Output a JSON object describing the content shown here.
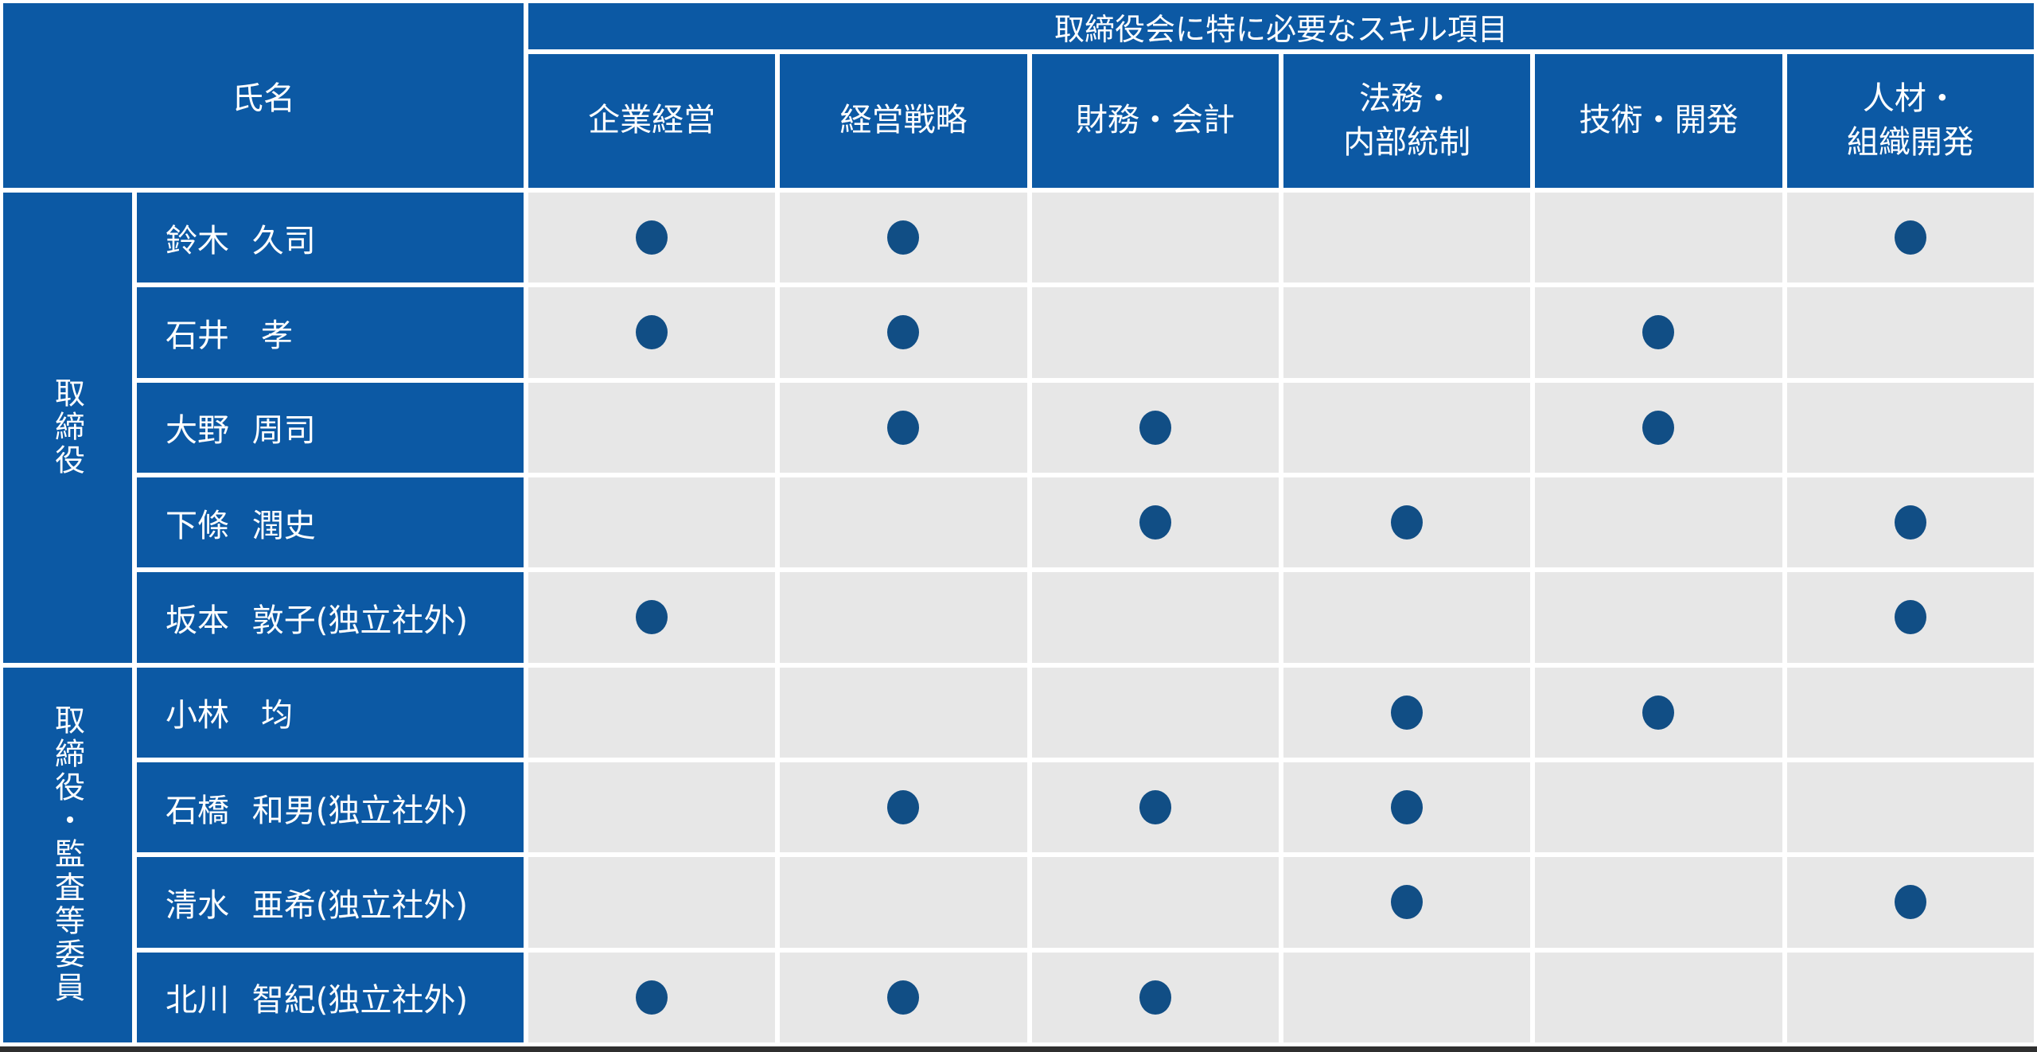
{
  "colors": {
    "header_blue": "#0c59a4",
    "cell_gray": "#e7e7e7",
    "dot_blue": "#114e85",
    "grid_white": "#ffffff",
    "bottom_edge_dark": "#2f2f2f"
  },
  "chart_data": {
    "type": "table",
    "title": "取締役会に特に必要なスキル項目",
    "row_header": "氏名",
    "columns": [
      "企業経営",
      "経営戦略",
      "財務・会計",
      "法務・内部統制",
      "技術・開発",
      "人材・組織開発"
    ],
    "column_display": [
      "企業経営",
      "経営戦略",
      "財務・会計",
      "法務・\n内部統制",
      "技術・開発",
      "人材・\n組織開発"
    ],
    "marker": "●",
    "row_groups": [
      {
        "group": "取締役",
        "rows": [
          "鈴木 久司",
          "石井　孝",
          "大野 周司",
          "下條 潤史",
          "坂本 敦子(独立社外)"
        ]
      },
      {
        "group": "取締役・監査等委員",
        "rows": [
          "小林　均",
          "石橋 和男(独立社外)",
          "清水 亜希(独立社外)",
          "北川 智紀(独立社外)"
        ]
      }
    ],
    "matrix": [
      [
        1,
        1,
        0,
        0,
        0,
        1
      ],
      [
        1,
        1,
        0,
        0,
        1,
        0
      ],
      [
        0,
        1,
        1,
        0,
        1,
        0
      ],
      [
        0,
        0,
        1,
        1,
        0,
        1
      ],
      [
        1,
        0,
        0,
        0,
        0,
        1
      ],
      [
        0,
        0,
        0,
        1,
        1,
        0
      ],
      [
        0,
        1,
        1,
        1,
        0,
        0
      ],
      [
        0,
        0,
        0,
        1,
        0,
        1
      ],
      [
        1,
        1,
        1,
        0,
        0,
        0
      ]
    ]
  }
}
